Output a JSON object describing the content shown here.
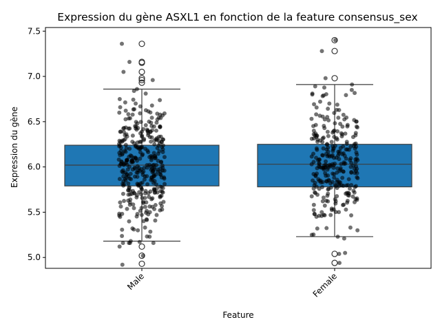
{
  "chart_data": {
    "type": "box",
    "title": "Expression du gène ASXL1 en fonction de la feature consensus_sex",
    "xlabel": "Feature",
    "ylabel": "Expression du gène",
    "categories": [
      "Male",
      "Female"
    ],
    "ylim": [
      4.88,
      7.54
    ],
    "yticks": [
      5.0,
      5.5,
      6.0,
      6.5,
      7.0,
      7.5
    ],
    "ytick_labels": [
      "5.0",
      "5.5",
      "6.0",
      "6.5",
      "7.0",
      "7.5"
    ],
    "grid": false,
    "legend": "none",
    "colors": {
      "box": "#1f77b4",
      "edge": "#3d3d3d",
      "point": "#000000"
    },
    "boxes": [
      {
        "category": "Male",
        "q1": 5.79,
        "median": 6.02,
        "q3": 6.24,
        "whisker_low": 5.18,
        "whisker_high": 6.86,
        "outliers": [
          4.93,
          5.02,
          5.12,
          6.93,
          6.96,
          6.98,
          7.05,
          7.15,
          7.16,
          7.36
        ]
      },
      {
        "category": "Female",
        "q1": 5.78,
        "median": 6.03,
        "q3": 6.25,
        "whisker_low": 5.23,
        "whisker_high": 6.91,
        "outliers": [
          4.94,
          5.04,
          6.98,
          7.28,
          7.4
        ]
      }
    ],
    "points": [
      {
        "category": "Male",
        "sample_size": 380,
        "notable_values": [
          4.92,
          5.02,
          5.12,
          5.16,
          5.3,
          5.33,
          5.48,
          5.5,
          6.7,
          6.75,
          6.86,
          6.96,
          7.05,
          7.16,
          7.36
        ]
      },
      {
        "category": "Female",
        "sample_size": 300,
        "notable_values": [
          4.94,
          5.04,
          5.05,
          5.23,
          5.3,
          5.45,
          5.5,
          6.7,
          6.8,
          6.85,
          6.91,
          6.98,
          7.28,
          7.4
        ]
      }
    ]
  }
}
